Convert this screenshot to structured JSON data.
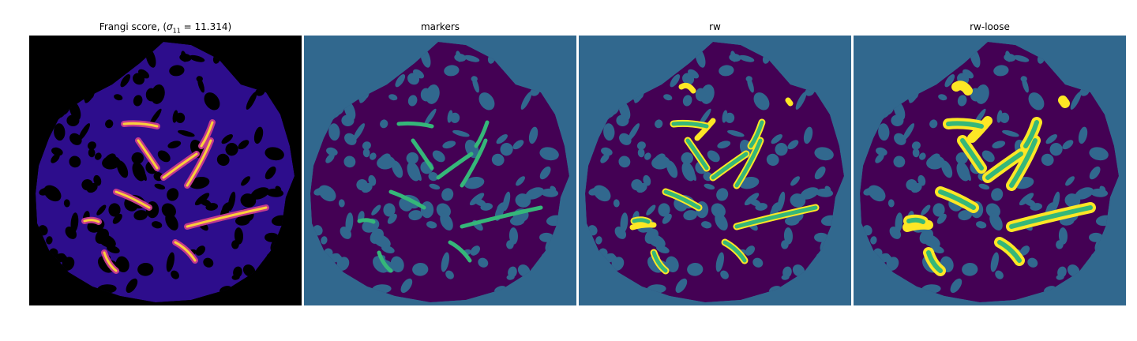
{
  "panels": [
    {
      "title_prefix": "Frangi score, (",
      "title_sigma": "σ",
      "title_sub": "11",
      "title_suffix": " = 11.314)"
    },
    {
      "title": "markers"
    },
    {
      "title": "rw"
    },
    {
      "title": "rw-loose"
    }
  ],
  "colors": {
    "black_bg": "#000000",
    "teal_bg": "#31688e",
    "purple_region": "#440154",
    "green_marker": "#35b779",
    "yellow_halo": "#fde725",
    "frangi_low": "#2d0d8c",
    "frangi_mid": "#c43a8e",
    "frangi_high": "#fcd03a"
  }
}
